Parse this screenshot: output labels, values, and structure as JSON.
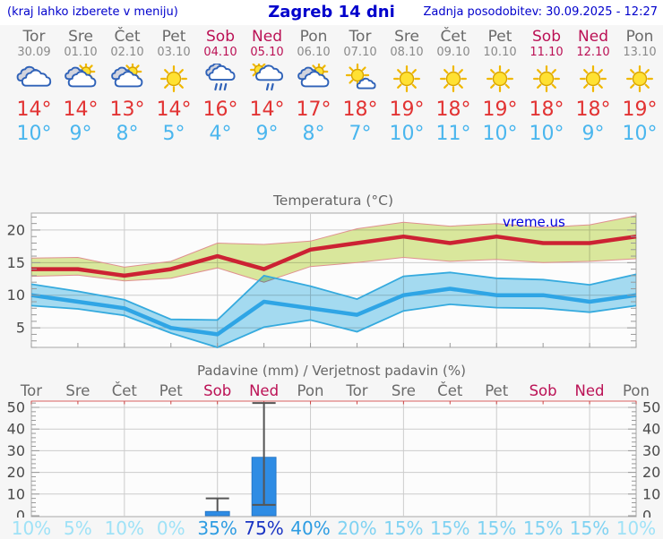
{
  "header": {
    "hint": "(kraj lahko izberete v meniju)",
    "title": "Zagreb 14 dni",
    "updated": "Zadnja posodobitev: 30.09.2025 - 12:27"
  },
  "watermark": "vreme.us",
  "forecast": {
    "days": [
      {
        "name": "Tor",
        "date": "30.09",
        "weekend": false,
        "icon": "cloudy-icon",
        "tmax": "14°",
        "tmin": "10°"
      },
      {
        "name": "Sre",
        "date": "01.10",
        "weekend": false,
        "icon": "partly-cloudy-icon",
        "tmax": "14°",
        "tmin": "9°"
      },
      {
        "name": "Čet",
        "date": "02.10",
        "weekend": false,
        "icon": "partly-cloudy-icon",
        "tmax": "13°",
        "tmin": "8°"
      },
      {
        "name": "Pet",
        "date": "03.10",
        "weekend": false,
        "icon": "sunny-icon",
        "tmax": "14°",
        "tmin": "5°"
      },
      {
        "name": "Sob",
        "date": "04.10",
        "weekend": true,
        "icon": "rain-icon",
        "tmax": "16°",
        "tmin": "4°"
      },
      {
        "name": "Ned",
        "date": "05.10",
        "weekend": true,
        "icon": "sun-shower-icon",
        "tmax": "14°",
        "tmin": "9°"
      },
      {
        "name": "Pon",
        "date": "06.10",
        "weekend": false,
        "icon": "partly-cloudy-icon",
        "tmax": "17°",
        "tmin": "8°"
      },
      {
        "name": "Tor",
        "date": "07.10",
        "weekend": false,
        "icon": "mostly-sunny-icon",
        "tmax": "18°",
        "tmin": "7°"
      },
      {
        "name": "Sre",
        "date": "08.10",
        "weekend": false,
        "icon": "sunny-icon",
        "tmax": "19°",
        "tmin": "10°"
      },
      {
        "name": "Čet",
        "date": "09.10",
        "weekend": false,
        "icon": "sunny-icon",
        "tmax": "18°",
        "tmin": "11°"
      },
      {
        "name": "Pet",
        "date": "10.10",
        "weekend": false,
        "icon": "sunny-icon",
        "tmax": "19°",
        "tmin": "10°"
      },
      {
        "name": "Sob",
        "date": "11.10",
        "weekend": true,
        "icon": "sunny-icon",
        "tmax": "18°",
        "tmin": "10°"
      },
      {
        "name": "Ned",
        "date": "12.10",
        "weekend": true,
        "icon": "sunny-icon",
        "tmax": "18°",
        "tmin": "9°"
      },
      {
        "name": "Pon",
        "date": "13.10",
        "weekend": false,
        "icon": "sunny-icon",
        "tmax": "19°",
        "tmin": "10°"
      }
    ]
  },
  "chart_data": [
    {
      "type": "area",
      "title": "Temperatura (°C)",
      "categories": [
        "Tor 30.09",
        "Sre 01.10",
        "Čet 02.10",
        "Pet 03.10",
        "Sob 04.10",
        "Ned 05.10",
        "Pon 06.10",
        "Tor 07.10",
        "Sre 08.10",
        "Čet 09.10",
        "Pet 10.10",
        "Sob 11.10",
        "Ned 12.10",
        "Pon 13.10"
      ],
      "ylim": [
        2,
        22.6
      ],
      "yticks": [
        5,
        10,
        15,
        20
      ],
      "grid": true,
      "series": [
        {
          "name": "max_temp",
          "values": [
            14,
            14,
            13,
            14,
            16,
            14,
            17,
            18,
            19,
            18,
            19,
            18,
            18,
            19
          ]
        },
        {
          "name": "max_range_hi",
          "values": [
            15.7,
            15.8,
            14.3,
            15.2,
            18.0,
            17.8,
            18.3,
            20.2,
            21.2,
            20.6,
            21.0,
            20.4,
            20.8,
            22.2
          ]
        },
        {
          "name": "max_range_lo",
          "values": [
            12.9,
            13.1,
            12.2,
            12.6,
            14.2,
            12.0,
            14.4,
            15.0,
            15.8,
            15.2,
            15.5,
            15.0,
            15.2,
            15.6
          ]
        },
        {
          "name": "min_temp",
          "values": [
            10,
            9,
            8,
            5,
            4,
            9,
            8,
            7,
            10,
            11,
            10,
            10,
            9,
            10
          ]
        },
        {
          "name": "min_range_hi",
          "values": [
            11.7,
            10.6,
            9.3,
            6.3,
            6.2,
            13.0,
            11.4,
            9.4,
            12.9,
            13.5,
            12.6,
            12.4,
            11.6,
            13.2
          ]
        },
        {
          "name": "min_range_lo",
          "values": [
            8.4,
            7.9,
            6.9,
            4.2,
            2.0,
            5.1,
            6.2,
            4.4,
            7.6,
            8.6,
            8.1,
            8.0,
            7.4,
            8.4
          ]
        }
      ]
    },
    {
      "type": "bar",
      "title": "Padavine (mm) / Verjetnost padavin (%)",
      "day_labels": [
        {
          "label": "Tor",
          "weekend": false
        },
        {
          "label": "Sre",
          "weekend": false
        },
        {
          "label": "Čet",
          "weekend": false
        },
        {
          "label": "Pet",
          "weekend": false
        },
        {
          "label": "Sob",
          "weekend": true
        },
        {
          "label": "Ned",
          "weekend": true
        },
        {
          "label": "Pon",
          "weekend": false
        },
        {
          "label": "Tor",
          "weekend": false
        },
        {
          "label": "Sre",
          "weekend": false
        },
        {
          "label": "Čet",
          "weekend": false
        },
        {
          "label": "Pet",
          "weekend": false
        },
        {
          "label": "Sob",
          "weekend": true
        },
        {
          "label": "Ned",
          "weekend": true
        },
        {
          "label": "Pon",
          "weekend": false
        }
      ],
      "ylim": [
        0,
        53
      ],
      "yticks": [
        0,
        10,
        20,
        30,
        40,
        50
      ],
      "precip_mm": [
        0,
        0,
        0,
        0,
        2,
        27,
        0,
        0,
        0,
        0,
        0,
        0,
        0,
        0
      ],
      "whisker_hi": [
        0,
        0,
        0,
        0,
        8,
        52,
        0,
        0,
        0,
        0,
        0,
        0,
        0,
        0
      ],
      "whisker_lo": [
        0,
        0,
        0,
        0,
        2,
        5,
        0,
        0,
        0,
        0,
        0,
        0,
        0,
        0
      ],
      "probability_pct": [
        {
          "label": "10%",
          "value": 10
        },
        {
          "label": "5%",
          "value": 5
        },
        {
          "label": "10%",
          "value": 10
        },
        {
          "label": "0%",
          "value": 0
        },
        {
          "label": "35%",
          "value": 35
        },
        {
          "label": "75%",
          "value": 75
        },
        {
          "label": "40%",
          "value": 40
        },
        {
          "label": "20%",
          "value": 20
        },
        {
          "label": "15%",
          "value": 15
        },
        {
          "label": "15%",
          "value": 15
        },
        {
          "label": "15%",
          "value": 15
        },
        {
          "label": "15%",
          "value": 15
        },
        {
          "label": "15%",
          "value": 15
        },
        {
          "label": "10%",
          "value": 10
        }
      ]
    }
  ],
  "colors": {
    "header_blue": "#0000cc",
    "weekday_gray": "#6a6a6a",
    "weekend_crimson": "#bb1155",
    "tmax_red": "#e23333",
    "tmin_blue": "#4ab6ee",
    "line_max": "#cc2233",
    "band_max": "#dcea9e",
    "band_max_edge": "#e09090",
    "line_min": "#2fa5e5",
    "band_min": "#a6ddf3",
    "band_min_edge": "#35aade",
    "bar_blue": "#2e8ce4",
    "whisker_gray": "#555555",
    "grid_gray": "#cccccc",
    "axis_gray": "#999999",
    "pct_low": "#9fe2f7",
    "pct_mid": "#7fd2f2",
    "pct_high": "#2d9ce2",
    "pct_max": "#1a35c4"
  }
}
